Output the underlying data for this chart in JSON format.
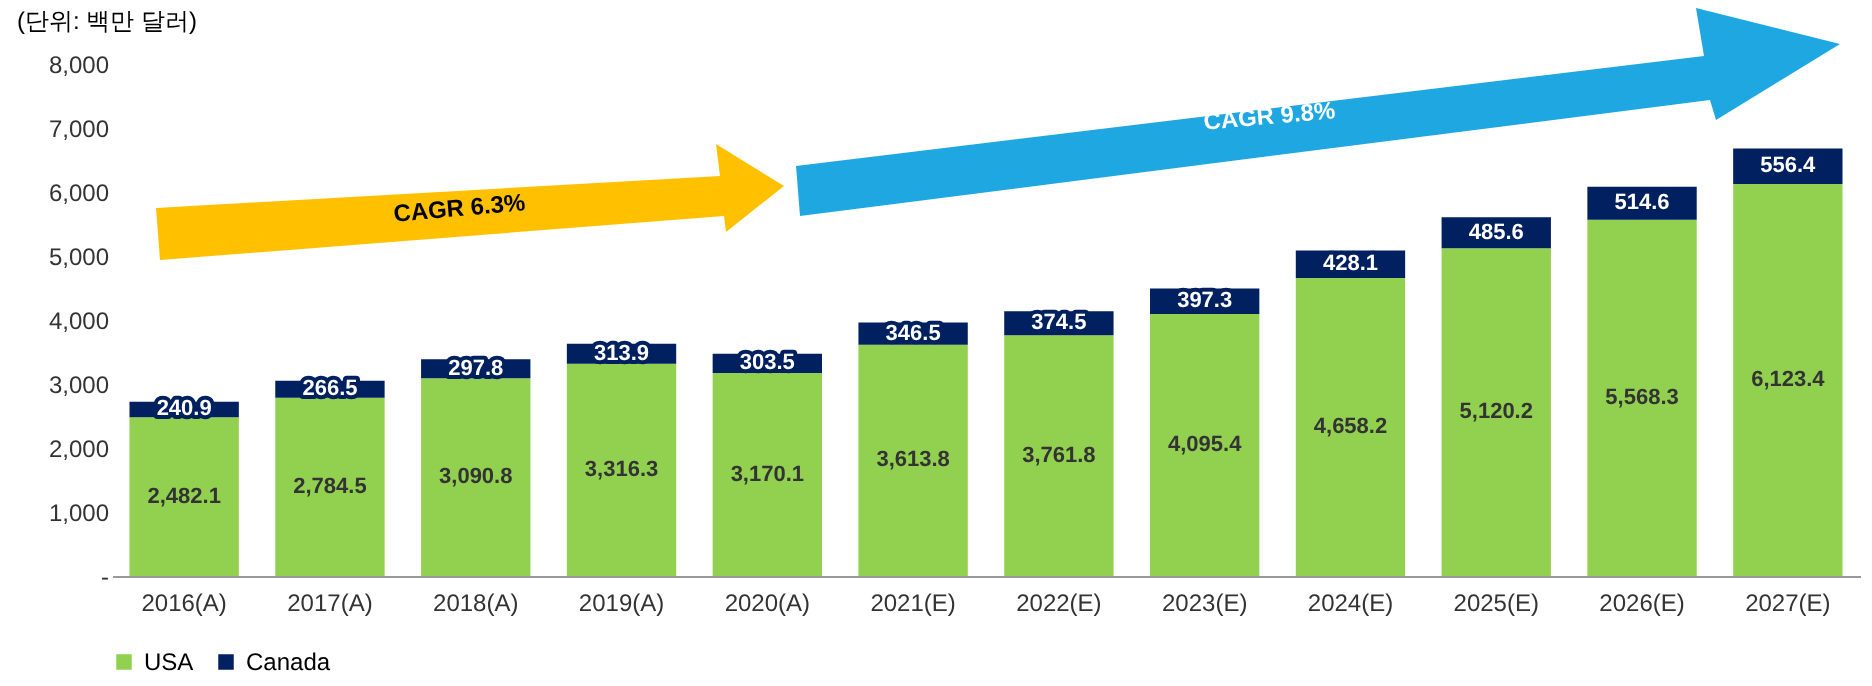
{
  "chart_data": {
    "type": "bar",
    "stacked": true,
    "ylabel": "(단위: 백만 달러)",
    "categories": [
      "2016(A)",
      "2017(A)",
      "2018(A)",
      "2019(A)",
      "2020(A)",
      "2021(E)",
      "2022(E)",
      "2023(E)",
      "2024(E)",
      "2025(E)",
      "2026(E)",
      "2027(E)"
    ],
    "series": [
      {
        "name": "USA",
        "color": "#92d050",
        "values": [
          2482.1,
          2784.5,
          3090.8,
          3316.3,
          3170.1,
          3613.8,
          3761.8,
          4095.4,
          4658.2,
          5120.2,
          5568.3,
          6123.4
        ],
        "value_labels": [
          "2,482.1",
          "2,784.5",
          "3,090.8",
          "3,316.3",
          "3,170.1",
          "3,613.8",
          "3,761.8",
          "4,095.4",
          "4,658.2",
          "5,120.2",
          "5,568.3",
          "6,123.4"
        ]
      },
      {
        "name": "Canada",
        "color": "#002060",
        "values": [
          240.9,
          266.5,
          297.8,
          313.9,
          303.5,
          346.5,
          374.5,
          397.3,
          428.1,
          485.6,
          514.6,
          556.4
        ],
        "value_labels": [
          "240.9",
          "266.5",
          "297.8",
          "313.9",
          "303.5",
          "346.5",
          "374.5",
          "397.3",
          "428.1",
          "485.6",
          "514.6",
          "556.4"
        ]
      }
    ],
    "ylim": [
      0,
      8000
    ],
    "yticks": [
      {
        "value": 0,
        "label": "-"
      },
      {
        "value": 1000,
        "label": "1,000"
      },
      {
        "value": 2000,
        "label": "2,000"
      },
      {
        "value": 3000,
        "label": "3,000"
      },
      {
        "value": 4000,
        "label": "4,000"
      },
      {
        "value": 5000,
        "label": "5,000"
      },
      {
        "value": 6000,
        "label": "6,000"
      },
      {
        "value": 7000,
        "label": "7,000"
      },
      {
        "value": 8000,
        "label": "8,000"
      }
    ],
    "grid": false,
    "legend": "bottom",
    "annotations": [
      "CAGR  6.3%",
      "CAGR  9.8%"
    ]
  }
}
